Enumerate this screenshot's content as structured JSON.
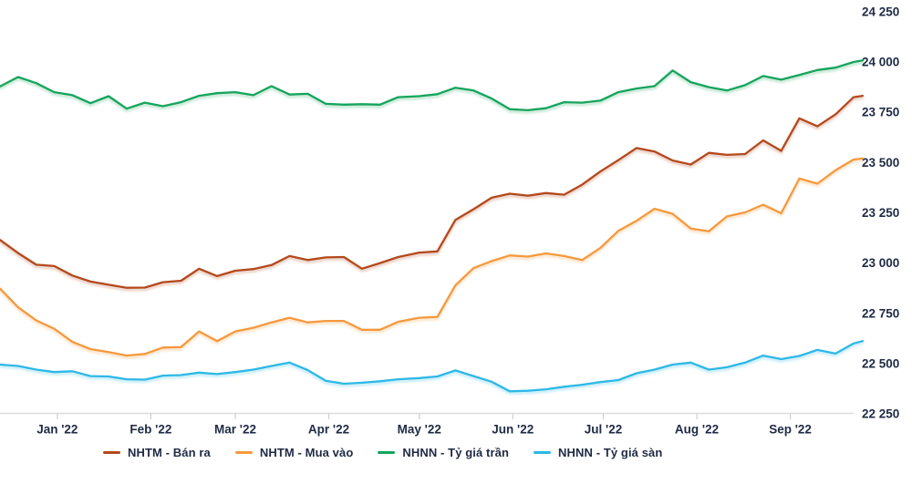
{
  "chart": {
    "background": "#ffffff",
    "axis_line_color": "#dcdcdc",
    "tick_mark_color": "#cfcfcf",
    "label_color": "#1F2A44",
    "y_axis": {
      "tick_labels": [
        "24 250",
        "24 000",
        "23 750",
        "23 500",
        "23 250",
        "23 000",
        "22 750",
        "22 500",
        "22 250"
      ],
      "tick_values": [
        24250,
        24000,
        23750,
        23500,
        23250,
        23000,
        22750,
        22500,
        22250
      ]
    },
    "x_axis": {
      "tick_labels": [
        "Jan '22",
        "Feb '22",
        "Mar '22",
        "Apr '22",
        "May '22",
        "Jun '22",
        "Jul '22",
        "Aug '22",
        "Sep '22"
      ],
      "tick_dates": [
        "2022-01-01",
        "2022-02-01",
        "2022-03-01",
        "2022-04-01",
        "2022-05-01",
        "2022-06-01",
        "2022-07-01",
        "2022-08-01",
        "2022-09-01"
      ]
    },
    "legend": [
      {
        "label": "NHTM - Bán ra",
        "color": "#B3481E"
      },
      {
        "label": "NHTM - Mua vào",
        "color": "#F5993D"
      },
      {
        "label": "NHNN - Tỷ giá trần",
        "color": "#12A45C"
      },
      {
        "label": "NHNN - Tỷ giá sàn",
        "color": "#2EB8E6"
      }
    ]
  },
  "chart_data": {
    "type": "line",
    "title": "",
    "xlabel": "",
    "ylabel": "",
    "ylim": [
      22250,
      24250
    ],
    "grid": false,
    "legend_position": "bottom",
    "x": [
      "2021-12-13",
      "2021-12-19",
      "2021-12-25",
      "2021-12-31",
      "2022-01-06",
      "2022-01-12",
      "2022-01-18",
      "2022-01-24",
      "2022-01-30",
      "2022-02-05",
      "2022-02-11",
      "2022-02-17",
      "2022-02-23",
      "2022-03-01",
      "2022-03-07",
      "2022-03-13",
      "2022-03-19",
      "2022-03-25",
      "2022-03-31",
      "2022-04-06",
      "2022-04-12",
      "2022-04-18",
      "2022-04-24",
      "2022-05-01",
      "2022-05-07",
      "2022-05-13",
      "2022-05-19",
      "2022-05-25",
      "2022-05-31",
      "2022-06-06",
      "2022-06-12",
      "2022-06-18",
      "2022-06-24",
      "2022-06-30",
      "2022-07-06",
      "2022-07-12",
      "2022-07-18",
      "2022-07-24",
      "2022-07-30",
      "2022-08-05",
      "2022-08-11",
      "2022-08-17",
      "2022-08-23",
      "2022-08-29",
      "2022-09-04",
      "2022-09-10",
      "2022-09-16",
      "2022-09-22",
      "2022-09-25"
    ],
    "series": [
      {
        "name": "NHTM - Bán ra",
        "color": "#B3481E",
        "values": [
          23115,
          23050,
          22992,
          22985,
          22938,
          22908,
          22892,
          22877,
          22878,
          22905,
          22912,
          22972,
          22935,
          22962,
          22970,
          22990,
          23035,
          23015,
          23028,
          23030,
          22972,
          23000,
          23030,
          23052,
          23058,
          23215,
          23268,
          23325,
          23345,
          23335,
          23348,
          23340,
          23390,
          23455,
          23512,
          23572,
          23555,
          23510,
          23490,
          23548,
          23538,
          23542,
          23610,
          23558,
          23720,
          23680,
          23740,
          23825,
          23832
        ]
      },
      {
        "name": "NHTM - Mua vào",
        "color": "#F5993D",
        "values": [
          22873,
          22780,
          22715,
          22673,
          22608,
          22572,
          22557,
          22540,
          22548,
          22580,
          22582,
          22660,
          22612,
          22660,
          22678,
          22705,
          22728,
          22705,
          22712,
          22712,
          22668,
          22668,
          22708,
          22728,
          22732,
          22890,
          22975,
          23010,
          23038,
          23032,
          23048,
          23035,
          23015,
          23075,
          23160,
          23210,
          23270,
          23245,
          23172,
          23158,
          23232,
          23252,
          23290,
          23248,
          23420,
          23395,
          23462,
          23515,
          23520
        ]
      },
      {
        "name": "NHNN - Tỷ giá trần",
        "color": "#12A45C",
        "values": [
          23878,
          23925,
          23895,
          23850,
          23835,
          23795,
          23830,
          23768,
          23798,
          23780,
          23800,
          23832,
          23845,
          23850,
          23835,
          23880,
          23838,
          23842,
          23792,
          23788,
          23790,
          23788,
          23825,
          23830,
          23840,
          23872,
          23858,
          23818,
          23765,
          23760,
          23770,
          23800,
          23798,
          23808,
          23850,
          23868,
          23880,
          23958,
          23900,
          23875,
          23858,
          23885,
          23930,
          23912,
          23935,
          23960,
          23972,
          24000,
          24008
        ]
      },
      {
        "name": "NHNN - Tỷ giá sàn",
        "color": "#2EB8E6",
        "values": [
          22495,
          22488,
          22470,
          22458,
          22462,
          22438,
          22436,
          22422,
          22420,
          22440,
          22443,
          22455,
          22448,
          22458,
          22470,
          22488,
          22505,
          22468,
          22415,
          22400,
          22405,
          22412,
          22422,
          22428,
          22436,
          22466,
          22438,
          22410,
          22362,
          22365,
          22372,
          22385,
          22395,
          22408,
          22418,
          22452,
          22470,
          22495,
          22505,
          22470,
          22482,
          22505,
          22540,
          22522,
          22538,
          22568,
          22550,
          22600,
          22612
        ]
      }
    ]
  }
}
